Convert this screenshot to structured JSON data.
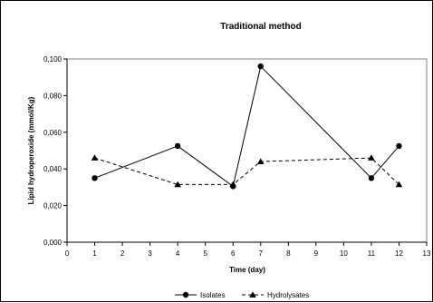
{
  "chart_data": {
    "type": "line",
    "title": "Traditional method",
    "xlabel": "Time (day)",
    "ylabel": "Lipid hydroperoxide (mmol/Kg)",
    "xlim": [
      0,
      13
    ],
    "ylim": [
      0,
      0.1
    ],
    "x_ticks": [
      0,
      1,
      2,
      3,
      4,
      5,
      6,
      7,
      8,
      9,
      10,
      11,
      12,
      13
    ],
    "x_tick_labels": [
      "0",
      "1",
      "2",
      "3",
      "4",
      "5",
      "6",
      "7",
      "8",
      "9",
      "10",
      "11",
      "12",
      "13"
    ],
    "y_ticks": [
      0,
      0.02,
      0.04,
      0.06,
      0.08,
      0.1
    ],
    "y_tick_labels": [
      "0,000",
      "0,020",
      "0,040",
      "0,060",
      "0,080",
      "0,100"
    ],
    "grid": false,
    "legend_position": "bottom",
    "series": [
      {
        "name": "Isolates",
        "marker": "circle",
        "line_style": "solid",
        "x": [
          1,
          4,
          6,
          7,
          11,
          12
        ],
        "y": [
          0.035,
          0.0525,
          0.0305,
          0.096,
          0.035,
          0.0525
        ]
      },
      {
        "name": "Hydrolysates",
        "marker": "triangle",
        "line_style": "dashed",
        "x": [
          1,
          4,
          6,
          7,
          11,
          12
        ],
        "y": [
          0.046,
          0.0315,
          0.0315,
          0.044,
          0.046,
          0.0315
        ]
      }
    ]
  }
}
